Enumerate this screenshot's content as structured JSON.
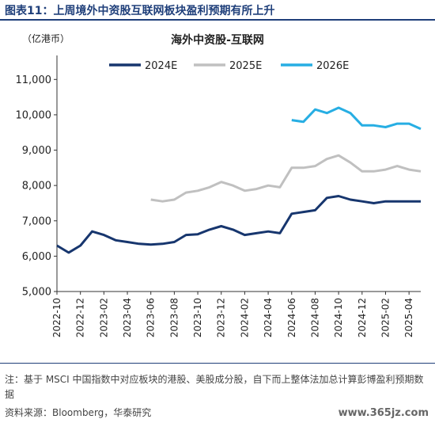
{
  "header": {
    "title": "图表11：上周境外中资股互联网板块盈利预期有所上升"
  },
  "chart_data": {
    "type": "line",
    "title": "海外中资股-互联网",
    "unit_label": "（亿港币）",
    "ylim": [
      5000,
      11500
    ],
    "yticks": [
      5000,
      6000,
      7000,
      8000,
      9000,
      10000,
      11000
    ],
    "ytick_labels": [
      "5,000",
      "6,000",
      "7,000",
      "8,000",
      "9,000",
      "10,000",
      "11,000"
    ],
    "xlim": [
      "2022-10",
      "2025-05"
    ],
    "xtick_labels": [
      "2022-10",
      "2022-12",
      "2023-02",
      "2023-04",
      "2023-06",
      "2023-08",
      "2023-10",
      "2023-12",
      "2024-02",
      "2024-04",
      "2024-06",
      "2024-08",
      "2024-10",
      "2024-12",
      "2025-02",
      "2025-04"
    ],
    "legend_position": "top",
    "series": [
      {
        "name": "2024E",
        "color": "#17366e",
        "points": [
          [
            "2022-10",
            6300
          ],
          [
            "2022-11",
            6100
          ],
          [
            "2022-12",
            6300
          ],
          [
            "2023-01",
            6700
          ],
          [
            "2023-02",
            6600
          ],
          [
            "2023-03",
            6450
          ],
          [
            "2023-04",
            6400
          ],
          [
            "2023-05",
            6350
          ],
          [
            "2023-06",
            6330
          ],
          [
            "2023-07",
            6350
          ],
          [
            "2023-08",
            6400
          ],
          [
            "2023-09",
            6600
          ],
          [
            "2023-10",
            6620
          ],
          [
            "2023-11",
            6750
          ],
          [
            "2023-12",
            6850
          ],
          [
            "2024-01",
            6750
          ],
          [
            "2024-02",
            6600
          ],
          [
            "2024-03",
            6650
          ],
          [
            "2024-04",
            6700
          ],
          [
            "2024-05",
            6650
          ],
          [
            "2024-06",
            7200
          ],
          [
            "2024-07",
            7250
          ],
          [
            "2024-08",
            7300
          ],
          [
            "2024-09",
            7650
          ],
          [
            "2024-10",
            7700
          ],
          [
            "2024-11",
            7600
          ],
          [
            "2024-12",
            7550
          ],
          [
            "2025-01",
            7500
          ],
          [
            "2025-02",
            7550
          ],
          [
            "2025-03",
            7550
          ],
          [
            "2025-04",
            7550
          ],
          [
            "2025-05",
            7550
          ]
        ]
      },
      {
        "name": "2025E",
        "color": "#c0c0c0",
        "points": [
          [
            "2023-06",
            7600
          ],
          [
            "2023-07",
            7550
          ],
          [
            "2023-08",
            7600
          ],
          [
            "2023-09",
            7800
          ],
          [
            "2023-10",
            7850
          ],
          [
            "2023-11",
            7950
          ],
          [
            "2023-12",
            8100
          ],
          [
            "2024-01",
            8000
          ],
          [
            "2024-02",
            7850
          ],
          [
            "2024-03",
            7900
          ],
          [
            "2024-04",
            8000
          ],
          [
            "2024-05",
            7950
          ],
          [
            "2024-06",
            8500
          ],
          [
            "2024-07",
            8500
          ],
          [
            "2024-08",
            8550
          ],
          [
            "2024-09",
            8750
          ],
          [
            "2024-10",
            8850
          ],
          [
            "2024-11",
            8650
          ],
          [
            "2024-12",
            8400
          ],
          [
            "2025-01",
            8400
          ],
          [
            "2025-02",
            8450
          ],
          [
            "2025-03",
            8550
          ],
          [
            "2025-04",
            8450
          ],
          [
            "2025-05",
            8400
          ]
        ]
      },
      {
        "name": "2026E",
        "color": "#27aee3",
        "points": [
          [
            "2024-06",
            9850
          ],
          [
            "2024-07",
            9800
          ],
          [
            "2024-08",
            10150
          ],
          [
            "2024-09",
            10050
          ],
          [
            "2024-10",
            10200
          ],
          [
            "2024-11",
            10050
          ],
          [
            "2024-12",
            9700
          ],
          [
            "2025-01",
            9700
          ],
          [
            "2025-02",
            9650
          ],
          [
            "2025-03",
            9750
          ],
          [
            "2025-04",
            9750
          ],
          [
            "2025-05",
            9600
          ]
        ]
      }
    ]
  },
  "footer": {
    "note": "注：基于 MSCI 中国指数中对应板块的港股、美股成分股，自下而上整体法加总计算彭博盈利预期数据",
    "source": "资料来源：Bloomberg，华泰研究",
    "watermark": "www.365jz.com"
  }
}
